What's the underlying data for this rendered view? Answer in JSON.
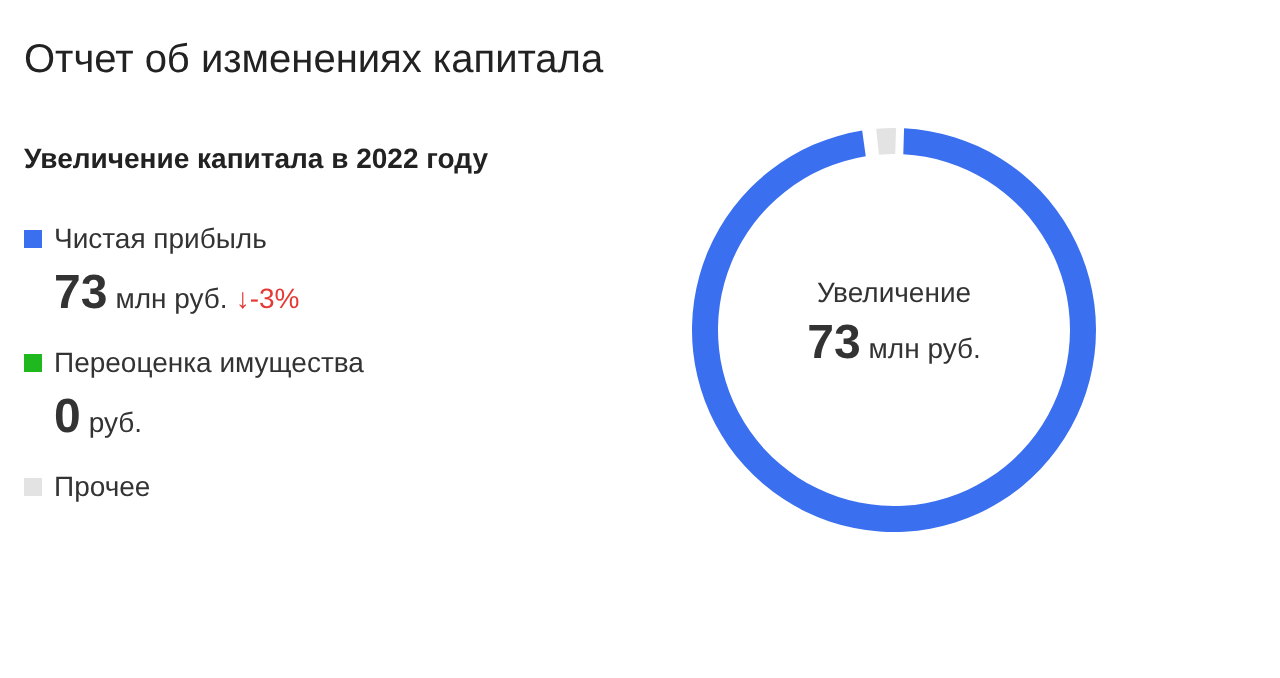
{
  "chart_data": {
    "type": "donut",
    "title": "Отчет об изменениях капитала",
    "subtitle": "Увеличение капитала в 2022 году",
    "categories": [
      "Чистая прибыль",
      "Переоценка имущества",
      "Прочее"
    ],
    "values": [
      73,
      0,
      1.3
    ],
    "colors": [
      "#3a6ff0",
      "#1fb81f",
      "#e3e3e3"
    ],
    "value_labels": [
      "73 млн руб.",
      "0 руб.",
      null
    ],
    "annotations": [
      "↓-3%",
      "Увеличение",
      "73 млн руб."
    ],
    "legend": "left"
  }
}
